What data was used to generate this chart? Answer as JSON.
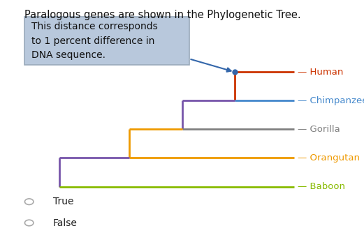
{
  "title": "Paralogous genes are shown in the Phylogenetic Tree.",
  "title_fontsize": 10.5,
  "callout_text": "This distance corresponds\nto 1 percent difference in\nDNA sequence.",
  "callout_bg": "#b8c8dc",
  "callout_border": "#9aaabb",
  "species": [
    "Human",
    "Chimpanzee",
    "Gorilla",
    "Orangutan",
    "Baboon"
  ],
  "species_colors": [
    "#cc3300",
    "#4488cc",
    "#808080",
    "#ee9900",
    "#88bb00"
  ],
  "bg_color": "#ffffff",
  "lw": 2.0,
  "purple": "#7755aa",
  "orange_line": "#ee9900",
  "arrow_color": "#3366aa",
  "dot_color": "#3366aa"
}
